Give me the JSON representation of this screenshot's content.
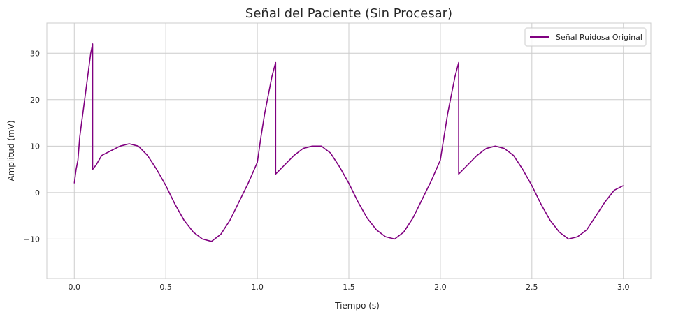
{
  "chart_data": {
    "type": "line",
    "title": "Señal del Paciente (Sin Procesar)",
    "xlabel": "Tiempo (s)",
    "ylabel": "Amplitud (mV)",
    "xlim": [
      -0.15,
      3.15
    ],
    "ylim": [
      -18.5,
      36.5
    ],
    "xticks": [
      0.0,
      0.5,
      1.0,
      1.5,
      2.0,
      2.5,
      3.0
    ],
    "xtick_labels": [
      "0.0",
      "0.5",
      "1.0",
      "1.5",
      "2.0",
      "2.5",
      "3.0"
    ],
    "yticks": [
      -10,
      0,
      10,
      20,
      30
    ],
    "ytick_labels": [
      "−10",
      "0",
      "10",
      "20",
      "30"
    ],
    "grid": true,
    "legend_position": "top-right",
    "series": [
      {
        "name": "Señal Ruidosa Original",
        "color": "#800080",
        "x": [
          0.0,
          0.01,
          0.02,
          0.03,
          0.04,
          0.05,
          0.06,
          0.07,
          0.08,
          0.09,
          0.1,
          0.1,
          0.12,
          0.15,
          0.2,
          0.25,
          0.3,
          0.35,
          0.4,
          0.45,
          0.5,
          0.55,
          0.6,
          0.65,
          0.7,
          0.75,
          0.8,
          0.85,
          0.9,
          0.95,
          1.0,
          1.02,
          1.04,
          1.06,
          1.08,
          1.1,
          1.1,
          1.15,
          1.2,
          1.25,
          1.3,
          1.35,
          1.4,
          1.45,
          1.5,
          1.55,
          1.6,
          1.65,
          1.7,
          1.75,
          1.8,
          1.85,
          1.9,
          1.95,
          2.0,
          2.02,
          2.04,
          2.06,
          2.08,
          2.1,
          2.1,
          2.15,
          2.2,
          2.25,
          2.3,
          2.35,
          2.4,
          2.45,
          2.5,
          2.55,
          2.6,
          2.65,
          2.7,
          2.75,
          2.8,
          2.85,
          2.9,
          2.95,
          3.0
        ],
        "y": [
          2.0,
          5.0,
          7.0,
          12.0,
          15.0,
          18.0,
          21.0,
          24.0,
          27.0,
          30.0,
          32.0,
          5.0,
          6.0,
          8.0,
          9.0,
          10.0,
          10.5,
          10.0,
          8.0,
          5.0,
          1.5,
          -2.5,
          -6.0,
          -8.5,
          -10.0,
          -10.5,
          -9.0,
          -6.0,
          -2.0,
          2.0,
          6.5,
          12.0,
          17.0,
          21.0,
          25.0,
          28.0,
          4.0,
          6.0,
          8.0,
          9.5,
          10.0,
          10.0,
          8.5,
          5.5,
          2.0,
          -2.0,
          -5.5,
          -8.0,
          -9.5,
          -10.0,
          -8.5,
          -5.5,
          -1.5,
          2.5,
          7.0,
          12.0,
          17.0,
          21.0,
          25.0,
          28.0,
          4.0,
          6.0,
          8.0,
          9.5,
          10.0,
          9.5,
          8.0,
          5.0,
          1.5,
          -2.5,
          -6.0,
          -8.5,
          -10.0,
          -9.5,
          -8.0,
          -5.0,
          -2.0,
          0.5,
          1.5
        ]
      }
    ]
  }
}
